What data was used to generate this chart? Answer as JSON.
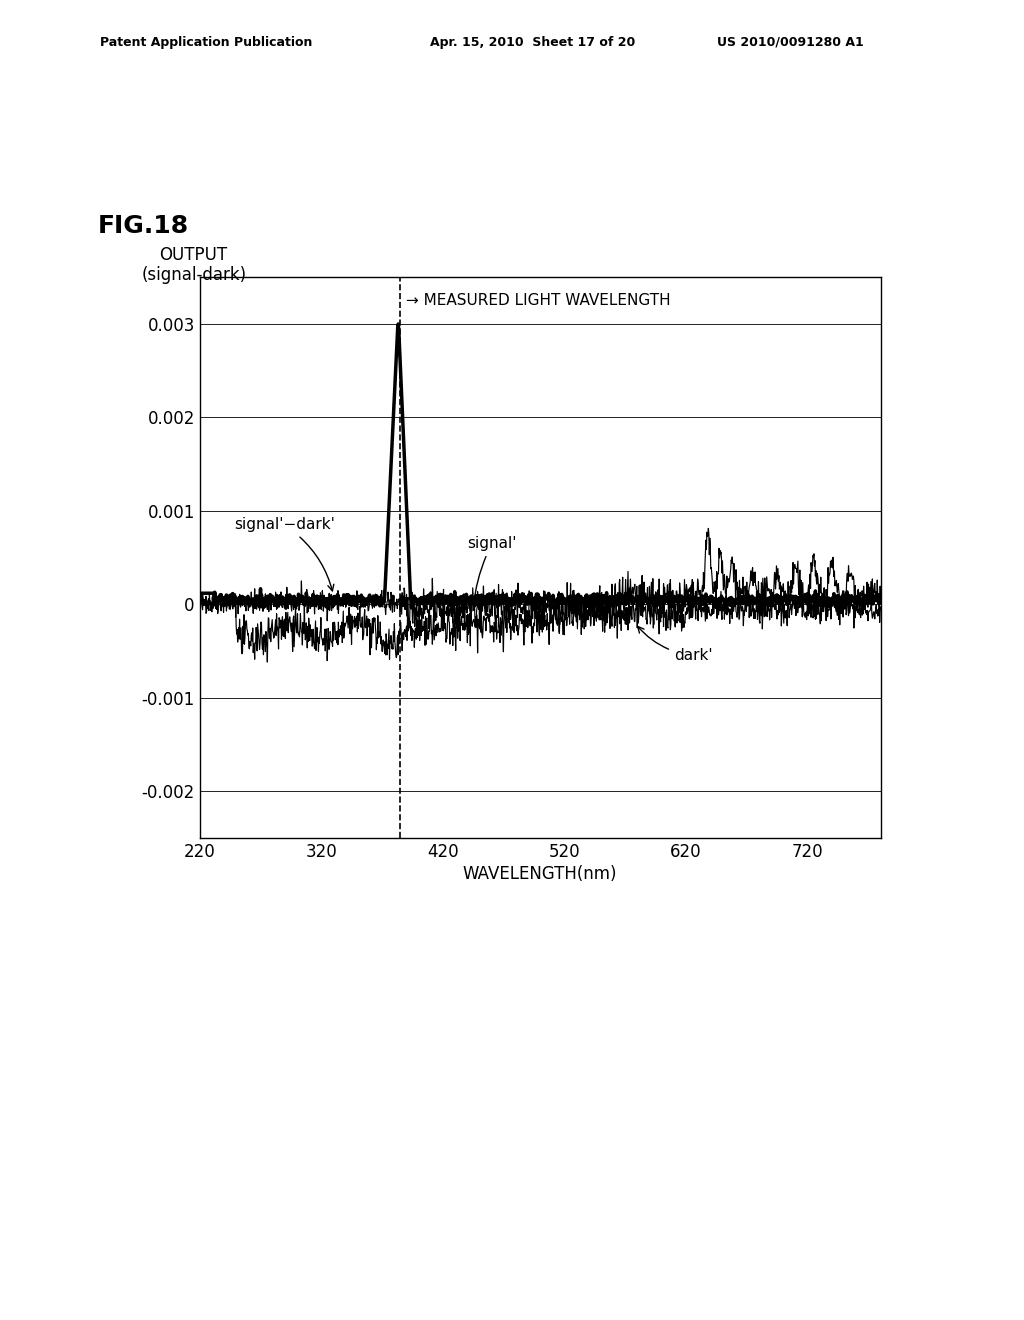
{
  "fig_label": "FIG.18",
  "ylabel_line1": "OUTPUT",
  "ylabel_line2": "(signal-dark)",
  "xlabel": "WAVELENGTH(nm)",
  "annotation_arrow": "→ MEASURED LIGHT WAVELENGTH",
  "ylim": [
    -0.0025,
    0.0035
  ],
  "xlim": [
    220,
    780
  ],
  "yticks": [
    -0.002,
    -0.001,
    0,
    0.001,
    0.002,
    0.003
  ],
  "xticks": [
    220,
    320,
    420,
    520,
    620,
    720
  ],
  "xticklabels": [
    "220",
    "320",
    "420",
    "520",
    "620",
    "720"
  ],
  "dashed_line_x": 385,
  "patent_header_left": "Patent Application Publication",
  "patent_header_mid": "Apr. 15, 2010  Sheet 17 of 20",
  "patent_header_right": "US 2010/0091280 A1",
  "background_color": "#ffffff",
  "line_color": "#000000"
}
